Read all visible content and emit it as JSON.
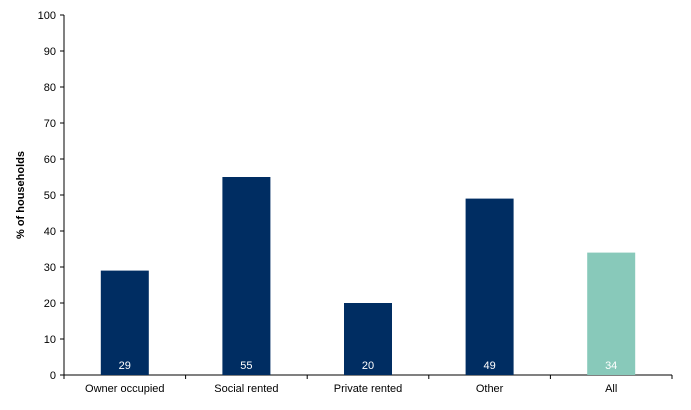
{
  "chart_data": {
    "type": "bar",
    "categories": [
      "Owner occupied",
      "Social rented",
      "Private rented",
      "Other",
      "All"
    ],
    "values": [
      29,
      55,
      20,
      49,
      34
    ],
    "bar_colors": [
      "#002d62",
      "#002d62",
      "#002d62",
      "#002d62",
      "#88c9ba"
    ],
    "ylabel": "% of households",
    "ylim": [
      0,
      100
    ],
    "yticks": [
      0,
      10,
      20,
      30,
      40,
      50,
      60,
      70,
      80,
      90,
      100
    ],
    "grid": false,
    "data_labels": [
      "29",
      "55",
      "20",
      "49",
      "34"
    ]
  }
}
